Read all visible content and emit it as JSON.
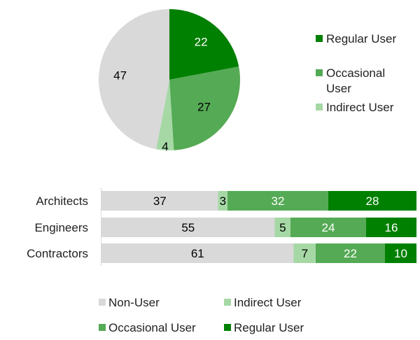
{
  "chart_data": [
    {
      "type": "pie",
      "categories": [
        "Regular User",
        "Occasional User",
        "Indirect User",
        "Non-User"
      ],
      "values": [
        22,
        27,
        4,
        47
      ],
      "colors": [
        "#008000",
        "#55aa55",
        "#a6d8a6",
        "#d9d9d9"
      ],
      "label_colors": [
        "#ffffff",
        "#000000",
        "#000000",
        "#000000"
      ],
      "legend": {
        "position": "right",
        "items": [
          {
            "lines": [
              "Regular User"
            ],
            "color": "#008000"
          },
          {
            "lines": [
              "Occasional",
              "User"
            ],
            "color": "#55aa55"
          },
          {
            "lines": [
              "Indirect User"
            ],
            "color": "#a6d8a6"
          }
        ]
      }
    },
    {
      "type": "bar",
      "orientation": "horizontal",
      "stacked": true,
      "categories": [
        "Architects",
        "Engineers",
        "Contractors"
      ],
      "series": [
        {
          "name": "Non-User",
          "values": [
            37,
            55,
            61
          ],
          "color": "#d9d9d9",
          "label_color": "#000000"
        },
        {
          "name": "Indirect User",
          "values": [
            3,
            5,
            7
          ],
          "color": "#a6d8a6",
          "label_color": "#000000"
        },
        {
          "name": "Occasional User",
          "values": [
            32,
            24,
            22
          ],
          "color": "#55aa55",
          "label_color": "#ffffff"
        },
        {
          "name": "Regular User",
          "values": [
            28,
            16,
            10
          ],
          "color": "#008000",
          "label_color": "#ffffff"
        }
      ],
      "xlim": [
        0,
        100
      ],
      "legend": {
        "position": "bottom"
      }
    }
  ]
}
